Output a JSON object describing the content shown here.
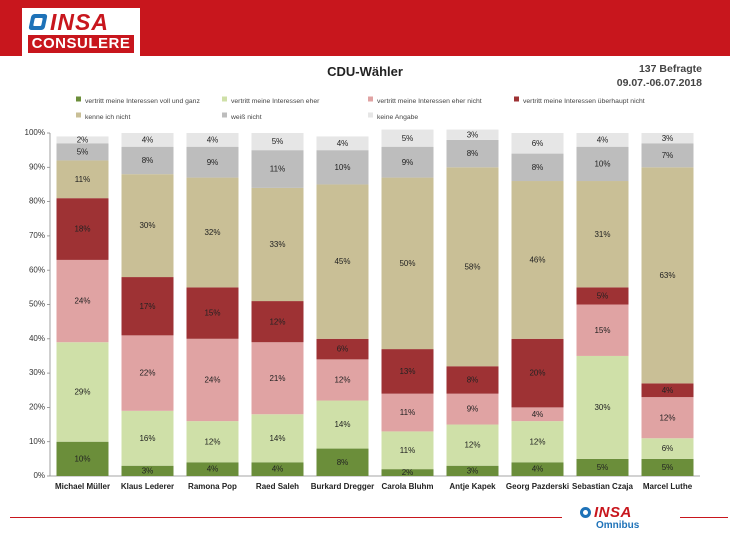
{
  "header": {
    "logo_main": "INSA",
    "logo_sub": "CONSULERE"
  },
  "info": {
    "respondents": "137 Befragte",
    "period": "09.07.-06.07.2018"
  },
  "footer": {
    "logo_main": "INSA",
    "logo_sub": "Omnibus"
  },
  "chart_data": {
    "type": "bar",
    "stacked": true,
    "title": "CDU-Wähler",
    "ylim": [
      0,
      100
    ],
    "y_ticks": [
      "0%",
      "10%",
      "20%",
      "30%",
      "40%",
      "50%",
      "60%",
      "70%",
      "80%",
      "90%",
      "100%"
    ],
    "grid": false,
    "legend_position": "top",
    "categories": [
      "Michael Müller",
      "Klaus Lederer",
      "Ramona Pop",
      "Raed Saleh",
      "Burkard Dregger",
      "Carola Bluhm",
      "Antje Kapek",
      "Georg Pazderski",
      "Sebastian Czaja",
      "Marcel Luthe"
    ],
    "series": [
      {
        "name": "vertritt meine Interessen voll und ganz",
        "color": "#6b8e3a",
        "values": [
          10,
          3,
          4,
          4,
          8,
          2,
          3,
          4,
          5,
          5
        ]
      },
      {
        "name": "vertritt meine Interessen eher",
        "color": "#cfe0a8",
        "values": [
          29,
          16,
          12,
          14,
          14,
          11,
          12,
          12,
          30,
          6
        ]
      },
      {
        "name": "vertritt meine Interessen eher nicht",
        "color": "#e0a3a3",
        "values": [
          24,
          22,
          24,
          21,
          12,
          11,
          9,
          4,
          15,
          12
        ]
      },
      {
        "name": "vertritt meine Interessen überhaupt nicht",
        "color": "#9e3234",
        "values": [
          18,
          17,
          15,
          12,
          6,
          13,
          8,
          20,
          5,
          4
        ]
      },
      {
        "name": "kenne ich nicht",
        "color": "#c9bf96",
        "values": [
          11,
          30,
          32,
          33,
          45,
          50,
          58,
          46,
          31,
          63
        ]
      },
      {
        "name": "weiß nicht",
        "color": "#bdbdbd",
        "values": [
          5,
          8,
          9,
          11,
          10,
          9,
          8,
          8,
          10,
          7
        ]
      },
      {
        "name": "keine Angabe",
        "color": "#e6e6e6",
        "values": [
          2,
          4,
          4,
          5,
          4,
          5,
          3,
          6,
          4,
          3
        ]
      }
    ]
  }
}
